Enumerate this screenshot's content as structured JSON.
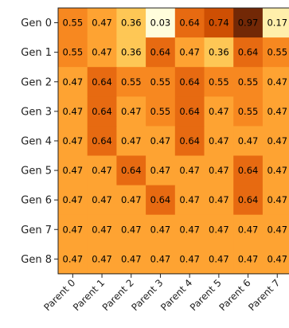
{
  "chart_data": {
    "type": "heatmap",
    "colormap": "YlOrBr",
    "x_labels": [
      "Parent 0",
      "Parent 1",
      "Parent 2",
      "Parent 3",
      "Parent 4",
      "Parent 5",
      "Parent 6",
      "Parent 7"
    ],
    "y_labels": [
      "Gen 0",
      "Gen 1",
      "Gen 2",
      "Gen 3",
      "Gen 4",
      "Gen 5",
      "Gen 6",
      "Gen 7",
      "Gen 8"
    ],
    "values": [
      [
        0.55,
        0.47,
        0.36,
        0.03,
        0.64,
        0.74,
        0.97,
        0.17
      ],
      [
        0.55,
        0.47,
        0.36,
        0.64,
        0.47,
        0.36,
        0.64,
        0.55
      ],
      [
        0.47,
        0.64,
        0.55,
        0.55,
        0.64,
        0.55,
        0.55,
        0.47
      ],
      [
        0.47,
        0.64,
        0.47,
        0.55,
        0.64,
        0.47,
        0.55,
        0.47
      ],
      [
        0.47,
        0.64,
        0.47,
        0.47,
        0.64,
        0.47,
        0.47,
        0.47
      ],
      [
        0.47,
        0.47,
        0.64,
        0.47,
        0.47,
        0.47,
        0.64,
        0.47
      ],
      [
        0.47,
        0.47,
        0.47,
        0.64,
        0.47,
        0.47,
        0.64,
        0.47
      ],
      [
        0.47,
        0.47,
        0.47,
        0.47,
        0.47,
        0.47,
        0.47,
        0.47
      ],
      [
        0.47,
        0.47,
        0.47,
        0.47,
        0.47,
        0.47,
        0.47,
        0.47
      ]
    ],
    "value_labels": [
      [
        "0.55",
        "0.47",
        "0.36",
        "0.03",
        "0.64",
        "0.74",
        "0.97",
        "0.17"
      ],
      [
        "0.55",
        "0.47",
        "0.36",
        "0.64",
        "0.47",
        "0.36",
        "0.64",
        "0.55"
      ],
      [
        "0.47",
        "0.64",
        "0.55",
        "0.55",
        "0.64",
        "0.55",
        "0.55",
        "0.47"
      ],
      [
        "0.47",
        "0.64",
        "0.47",
        "0.55",
        "0.64",
        "0.47",
        "0.55",
        "0.47"
      ],
      [
        "0.47",
        "0.64",
        "0.47",
        "0.47",
        "0.64",
        "0.47",
        "0.47",
        "0.47"
      ],
      [
        "0.47",
        "0.47",
        "0.64",
        "0.47",
        "0.47",
        "0.47",
        "0.64",
        "0.47"
      ],
      [
        "0.47",
        "0.47",
        "0.47",
        "0.64",
        "0.47",
        "0.47",
        "0.64",
        "0.47"
      ],
      [
        "0.47",
        "0.47",
        "0.47",
        "0.47",
        "0.47",
        "0.47",
        "0.47",
        "0.47"
      ],
      [
        "0.47",
        "0.47",
        "0.47",
        "0.47",
        "0.47",
        "0.47",
        "0.47",
        "0.47"
      ]
    ],
    "value_range": [
      0,
      1
    ],
    "grid": false,
    "legend": "none"
  }
}
